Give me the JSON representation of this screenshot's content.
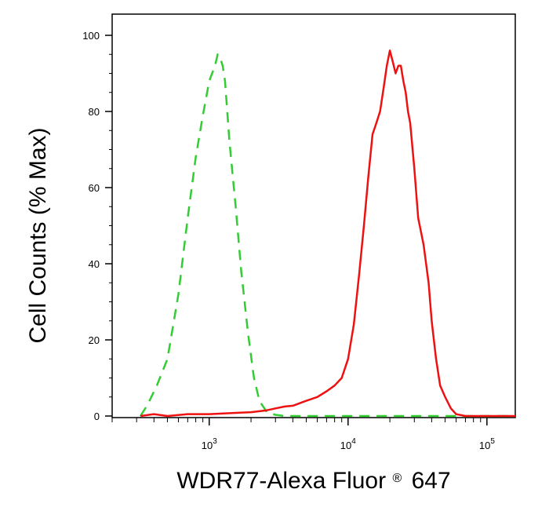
{
  "chart_data": {
    "type": "line",
    "xlabel": "WDR77-Alexa Fluor",
    "xlabel_mark": "®",
    "xlabel_suffix": "647",
    "ylabel": "Cell Counts (% Max)",
    "x_scale": "log",
    "xlim": [
      200,
      160000
    ],
    "ylim": [
      0,
      100
    ],
    "y_ticks": [
      0,
      20,
      40,
      60,
      80,
      100
    ],
    "x_ticks": [
      {
        "value": 1000,
        "base": "10",
        "exp": "3"
      },
      {
        "value": 10000,
        "base": "10",
        "exp": "4"
      },
      {
        "value": 100000,
        "base": "10",
        "exp": "5"
      }
    ],
    "grid": false,
    "legend": "none",
    "series": [
      {
        "color": "#33cc33",
        "style": "dashed",
        "x": [
          320,
          360,
          420,
          500,
          600,
          700,
          800,
          900,
          1000,
          1100,
          1150,
          1200,
          1250,
          1300,
          1400,
          1550,
          1700,
          1900,
          2100,
          2300,
          2600,
          3000,
          3500,
          5000,
          10000,
          30000,
          100000,
          160000
        ],
        "y": [
          0,
          3,
          8,
          15,
          32,
          52,
          68,
          79,
          88,
          92,
          95,
          94,
          92,
          88,
          72,
          55,
          38,
          22,
          10,
          4,
          1,
          0.3,
          0,
          0,
          0,
          0,
          0,
          0
        ]
      },
      {
        "color": "#ee1111",
        "style": "solid",
        "x": [
          320,
          400,
          500,
          700,
          1000,
          1500,
          2000,
          2600,
          3000,
          3500,
          4000,
          5000,
          6000,
          7000,
          8000,
          9000,
          10000,
          11000,
          12000,
          13000,
          14000,
          15000,
          16000,
          17000,
          18000,
          19000,
          20000,
          21000,
          22000,
          23000,
          24000,
          25000,
          26000,
          27000,
          28000,
          30000,
          32000,
          35000,
          38000,
          40000,
          43000,
          46000,
          50000,
          55000,
          60000,
          70000,
          80000,
          100000,
          160000
        ],
        "y": [
          0,
          0.5,
          0,
          0.5,
          0.5,
          0.8,
          1,
          1.5,
          2,
          2.5,
          2.7,
          4,
          5,
          6.5,
          8,
          10,
          15,
          24,
          37,
          50,
          63,
          74,
          77,
          80,
          86,
          92,
          96,
          93,
          90,
          92,
          92,
          88,
          85,
          80,
          77,
          65,
          52,
          45,
          35,
          25,
          15,
          8,
          5,
          2,
          0.5,
          0,
          0,
          0,
          0
        ]
      }
    ]
  }
}
